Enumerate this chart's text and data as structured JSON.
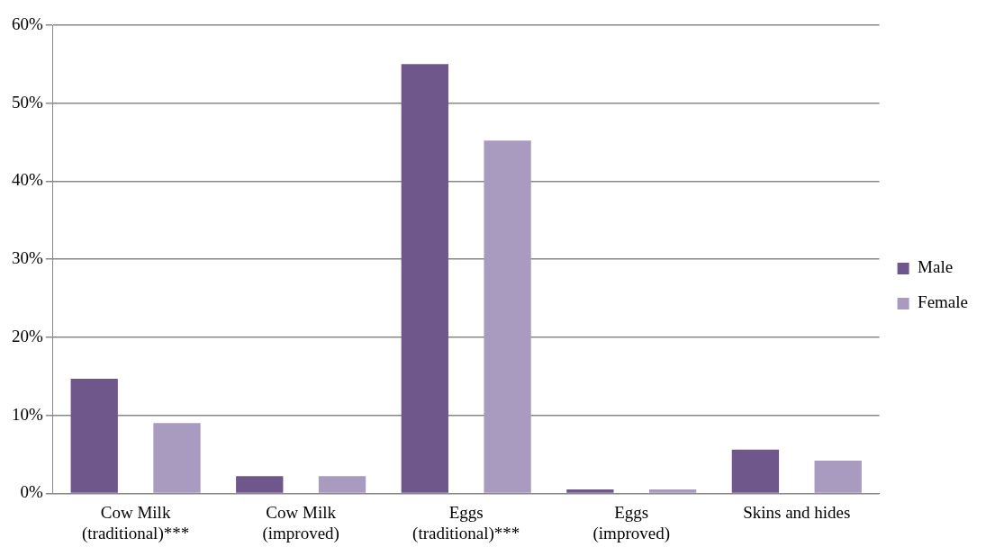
{
  "chart_data": {
    "type": "bar",
    "categories": [
      [
        "Cow Milk",
        "(traditional)***"
      ],
      [
        "Cow Milk",
        "(improved)"
      ],
      [
        "Eggs",
        "(traditional)***"
      ],
      [
        "Eggs",
        "(improved)"
      ],
      "Skins and hides"
    ],
    "series": [
      {
        "name": "Male",
        "color": "#6f578c",
        "values": [
          14.7,
          2.2,
          55,
          0.5,
          5.6
        ]
      },
      {
        "name": "Female",
        "color": "#a99bc0",
        "values": [
          9,
          2.2,
          45.2,
          0.5,
          4.2
        ]
      }
    ],
    "ylim": [
      0,
      60
    ],
    "yticks": [
      {
        "value": 0,
        "label": "0%"
      },
      {
        "value": 10,
        "label": "10%"
      },
      {
        "value": 20,
        "label": "20%"
      },
      {
        "value": 30,
        "label": "30%"
      },
      {
        "value": 40,
        "label": "40%"
      },
      {
        "value": 50,
        "label": "50%"
      },
      {
        "value": 60,
        "label": "60%"
      }
    ],
    "grid": "y",
    "legend": "right"
  }
}
